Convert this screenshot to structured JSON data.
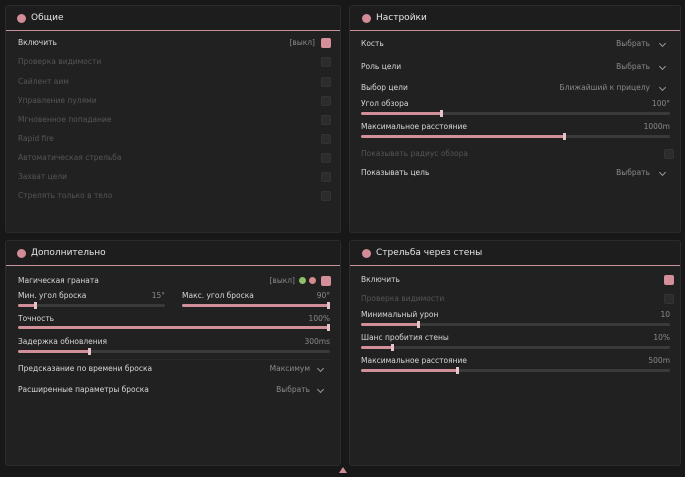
{
  "panels": [
    {
      "title": "Общие",
      "enable": {
        "label": "Включить",
        "hint": "[выкл]"
      },
      "rows": [
        "Проверка видимости",
        "Сайлент аим",
        "Управление пулями",
        "Мгновенное попадание",
        "Rapid fire",
        "Автоматическая стрельба",
        "Захват цели",
        "Стрелять только в тело"
      ]
    },
    {
      "title": "Настройки",
      "dropdowns": [
        {
          "label": "Кость",
          "value": "Выбрать"
        },
        {
          "label": "Роль цели",
          "value": "Выбрать"
        },
        {
          "label": "Выбор цели",
          "value": "Ближайший к прицелу"
        }
      ],
      "sliders": [
        {
          "label": "Угол обзора",
          "value": "100°"
        },
        {
          "label": "Максимальное расстояние",
          "value": "1000m"
        }
      ],
      "checkbox": "Показывать радиус обзора",
      "last_dropdown": {
        "label": "Показывать цель",
        "value": "Выбрать"
      }
    },
    {
      "title": "Дополнительно",
      "enable": {
        "label": "Магическая граната",
        "hint": "[выкл]"
      },
      "sliders": [
        {
          "label": "Мин. угол броска",
          "value": "15°"
        },
        {
          "label": "Макс. угол броска",
          "value": "90°"
        },
        {
          "label": "Точность",
          "value": "100%"
        },
        {
          "label": "Задержка обновления",
          "value": "300ms"
        }
      ],
      "dropdowns": [
        {
          "label": "Предсказание по времени броска",
          "value": "Максимум"
        },
        {
          "label": "Расширенные параметры броска",
          "value": "Выбрать"
        }
      ]
    },
    {
      "title": "Стрельба через стены",
      "enable": "Включить",
      "checkbox": "Проверка видимости",
      "sliders": [
        {
          "label": "Минимальный урон",
          "value": "10"
        },
        {
          "label": "Шанс пробития стены",
          "value": "10%"
        },
        {
          "label": "Максимальное расстояние",
          "value": "500m"
        }
      ]
    }
  ]
}
